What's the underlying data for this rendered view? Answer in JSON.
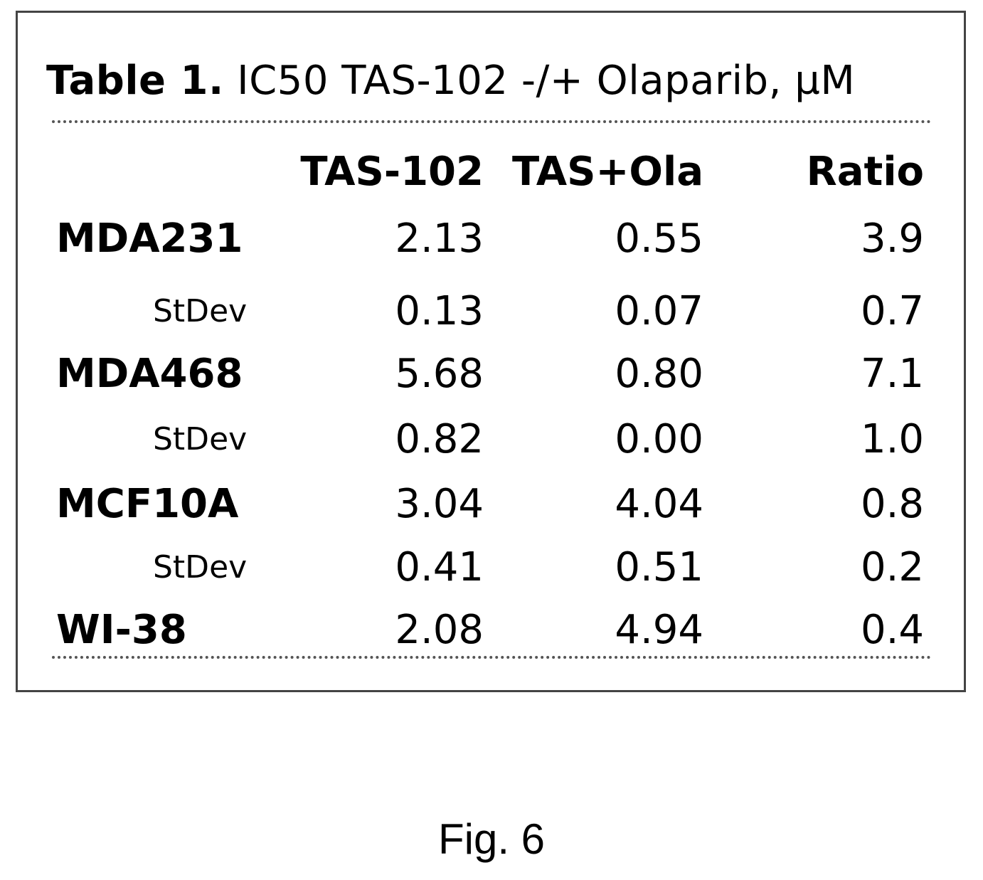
{
  "table": {
    "caption_label": "Table 1.",
    "caption_text": " IC50 TAS-102 -/+ Olaparib, µM",
    "headers": [
      "",
      "TAS-102",
      "TAS+Ola",
      "Ratio"
    ],
    "rows": [
      {
        "label": "MDA231",
        "kind": "cell-line",
        "values": [
          "2.13",
          "0.55",
          "3.9"
        ]
      },
      {
        "label": "StDev",
        "kind": "stdev",
        "values": [
          "0.13",
          "0.07",
          "0.7"
        ]
      },
      {
        "label": "MDA468",
        "kind": "cell-line",
        "values": [
          "5.68",
          "0.80",
          "7.1"
        ]
      },
      {
        "label": "StDev",
        "kind": "stdev",
        "values": [
          "0.82",
          "0.00",
          "1.0"
        ]
      },
      {
        "label": "MCF10A",
        "kind": "cell-line",
        "values": [
          "3.04",
          "4.04",
          "0.8"
        ]
      },
      {
        "label": "StDev",
        "kind": "stdev",
        "values": [
          "0.41",
          "0.51",
          "0.2"
        ]
      },
      {
        "label": "WI-38",
        "kind": "cell-line",
        "values": [
          "2.08",
          "4.94",
          "0.4"
        ]
      }
    ]
  },
  "figure": {
    "label": "Fig. 6"
  }
}
